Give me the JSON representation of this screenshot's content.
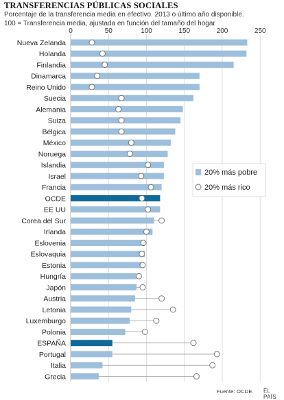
{
  "title": "TRANSFERENCIAS PÚBLICAS SOCIALES",
  "subtitle_1": "Porcentaje de la transferencia media en efectivo. 2013 o último año disponible.",
  "subtitle_2": "100 = Transferencia media, ajustada en función del tamaño del hogar",
  "source": "Fuente: OCDE.",
  "brand": "EL PAÍS",
  "colors": {
    "bar": "#9ebfdb",
    "highlight": "#0e6a98",
    "line": "#999999",
    "grid": "#dddddd"
  },
  "chart_data": {
    "type": "bar",
    "orientation": "horizontal",
    "xlim": [
      0,
      250
    ],
    "xticks": [
      0,
      50,
      100,
      150,
      200,
      250
    ],
    "grid": true,
    "legend_position": "right",
    "highlighted": [
      "OCDE",
      "ESPAÑA"
    ],
    "categories": [
      "Nueva Zelanda",
      "Holanda",
      "Finlandia",
      "Dinamarca",
      "Reino Unido",
      "Suecia",
      "Alemania",
      "Suiza",
      "Bélgica",
      "México",
      "Noruega",
      "Islandia",
      "Israel",
      "Francia",
      "OCDE",
      "EE UU",
      "Corea del Sur",
      "Irlanda",
      "Eslovenia",
      "Eslovaquia",
      "Estonia",
      "Hungría",
      "Japón",
      "Austria",
      "Letonia",
      "Luxemburgo",
      "Polonia",
      "ESPAÑA",
      "Portugal",
      "Italia",
      "Grecia"
    ],
    "series": [
      {
        "name": "20% más pobre",
        "marker": "bar",
        "values": [
          233,
          232,
          215,
          170,
          170,
          162,
          148,
          145,
          138,
          132,
          128,
          123,
          123,
          120,
          118,
          118,
          110,
          108,
          98,
          98,
          97,
          87,
          87,
          85,
          80,
          78,
          72,
          55,
          55,
          42,
          37
        ]
      },
      {
        "name": "20% más rico",
        "marker": "circle",
        "values": [
          28,
          42,
          45,
          35,
          28,
          67,
          63,
          67,
          67,
          80,
          78,
          102,
          93,
          106,
          94,
          102,
          120,
          100,
          96,
          94,
          95,
          90,
          95,
          120,
          135,
          113,
          98,
          162,
          193,
          187,
          166
        ]
      }
    ]
  }
}
